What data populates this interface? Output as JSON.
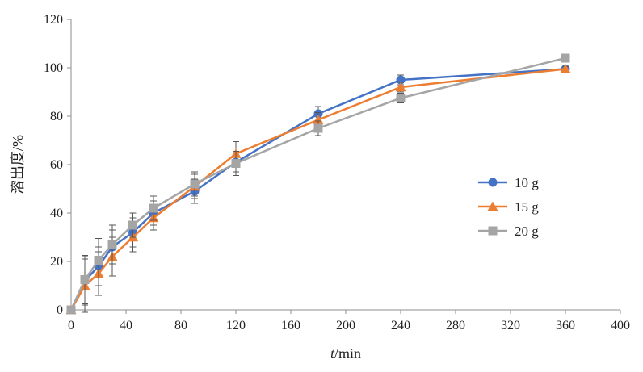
{
  "chart_data": {
    "type": "line",
    "xlabel": "t/min",
    "ylabel": "溶出度/%",
    "xlim": [
      0,
      400
    ],
    "ylim": [
      0,
      120
    ],
    "xticks": [
      0,
      40,
      80,
      120,
      160,
      200,
      240,
      280,
      320,
      360,
      400
    ],
    "yticks": [
      0,
      20,
      40,
      60,
      80,
      100,
      120
    ],
    "grid": false,
    "legend_position": "right",
    "error_bars": true,
    "series": [
      {
        "name": "10 g",
        "color": "#4472C4",
        "marker": "circle",
        "x": [
          0,
          10,
          20,
          30,
          45,
          60,
          90,
          120,
          180,
          240,
          360
        ],
        "y": [
          0,
          12,
          18,
          26,
          32,
          40,
          49,
          61,
          81,
          95,
          99.5
        ],
        "err": [
          0,
          10,
          8,
          7,
          6,
          5,
          5,
          4,
          3,
          2,
          1
        ]
      },
      {
        "name": "15 g",
        "color": "#ED7D31",
        "marker": "triangle",
        "x": [
          0,
          10,
          20,
          30,
          45,
          60,
          90,
          120,
          180,
          240,
          360
        ],
        "y": [
          0,
          10,
          15,
          22,
          30,
          38,
          51,
          64.5,
          78.5,
          92,
          99.5
        ],
        "err": [
          0,
          11,
          9,
          8,
          6,
          5,
          5,
          5,
          3,
          2,
          1
        ]
      },
      {
        "name": "20 g",
        "color": "#A5A5A5",
        "marker": "square",
        "x": [
          0,
          10,
          20,
          30,
          45,
          60,
          90,
          120,
          180,
          240,
          360
        ],
        "y": [
          0,
          12.5,
          20.5,
          27,
          35,
          42,
          52,
          60.5,
          75,
          87.5,
          104
        ],
        "err": [
          0,
          10,
          9,
          8,
          5,
          5,
          5,
          5,
          3,
          2,
          1
        ]
      }
    ]
  }
}
